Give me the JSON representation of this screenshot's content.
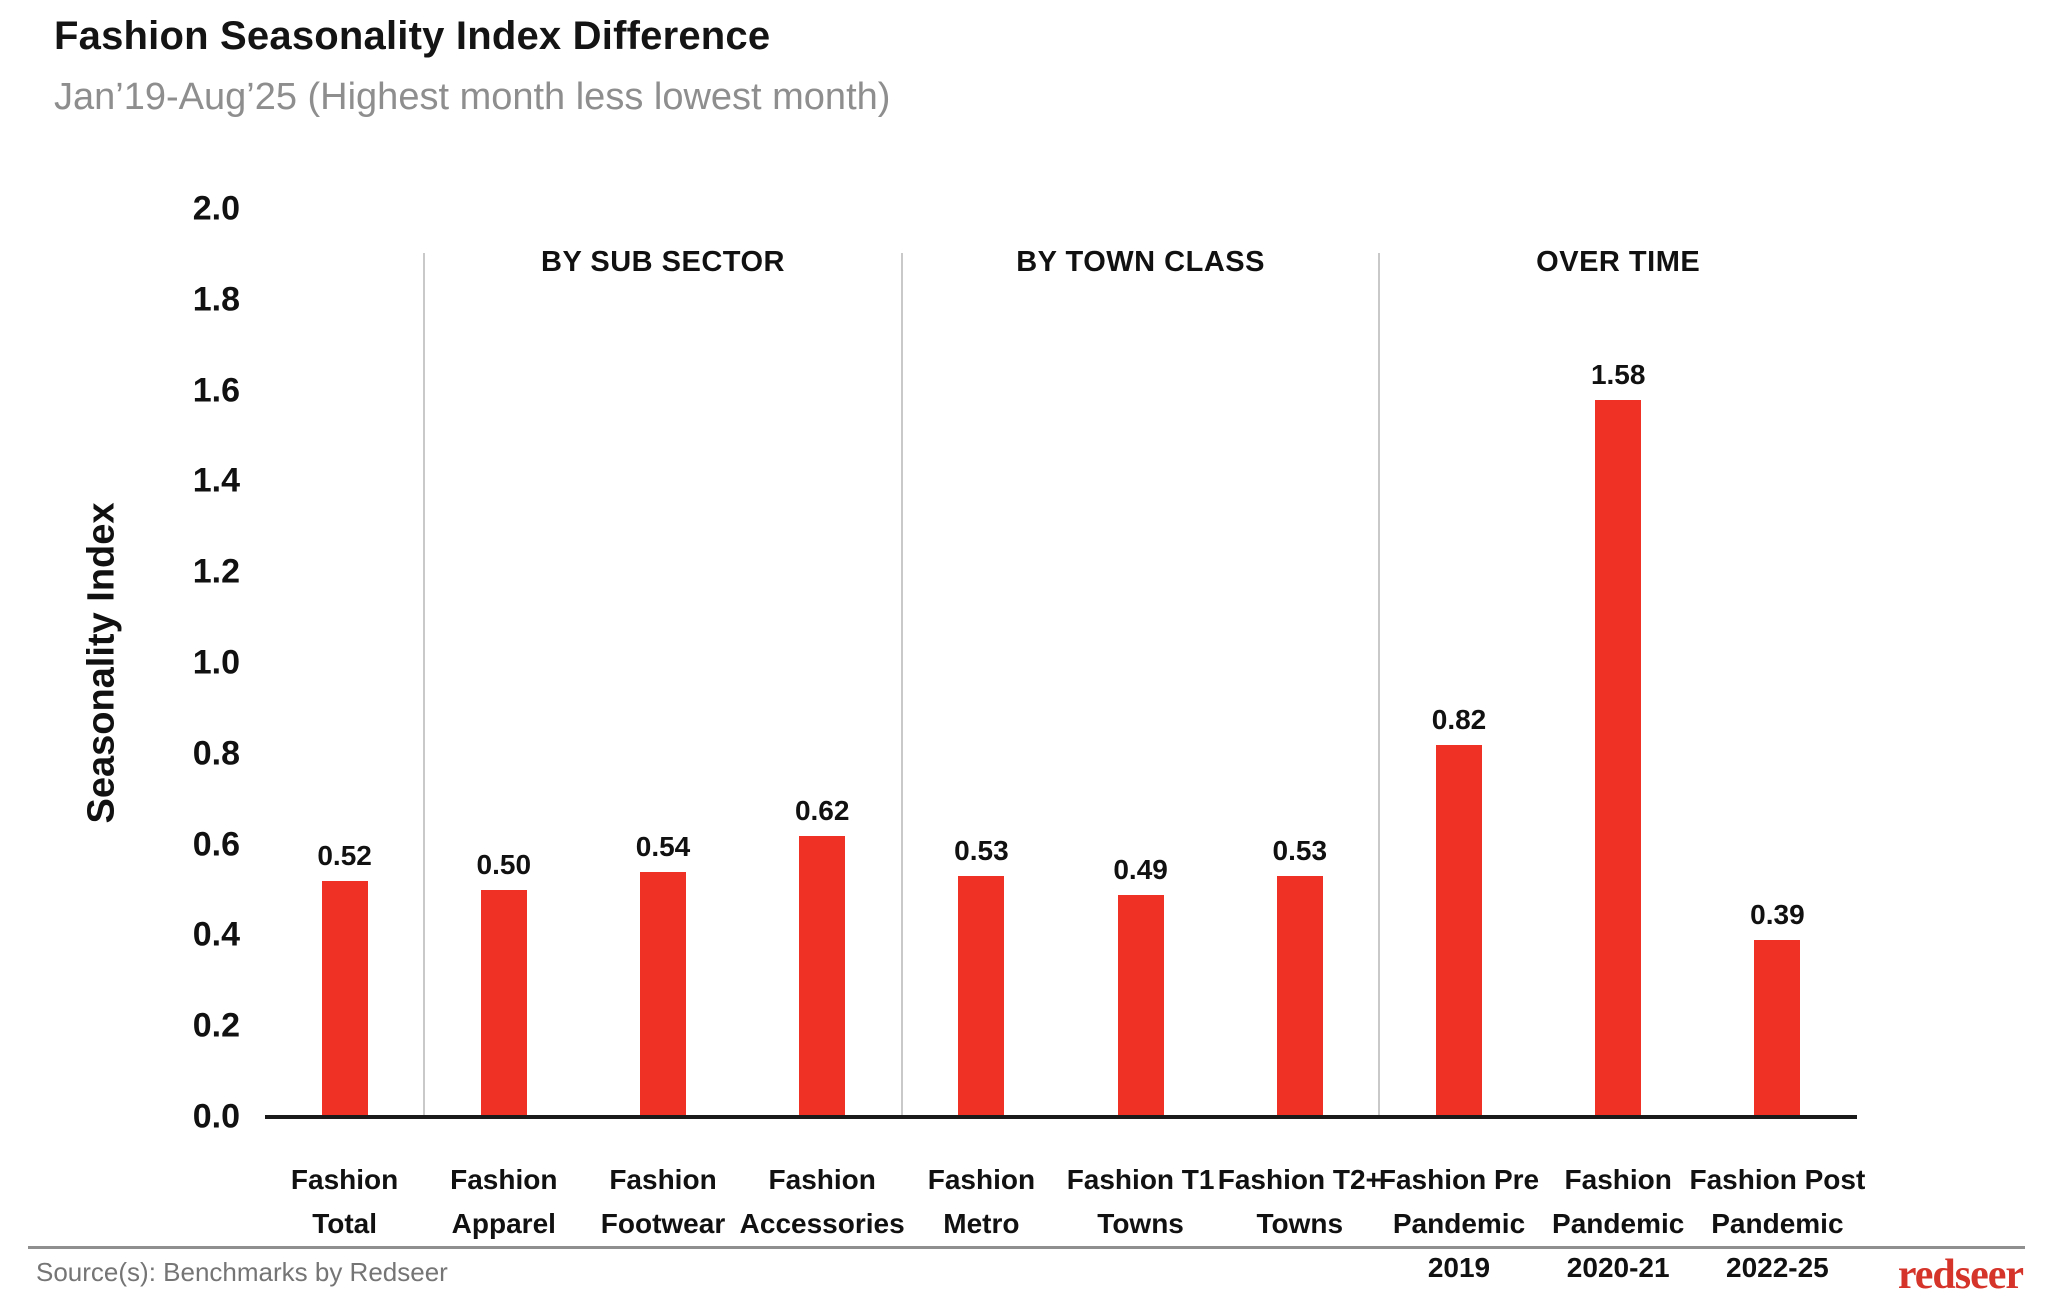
{
  "header": {
    "title": "Fashion Seasonality Index Difference",
    "subtitle": "Jan’19-Aug’25 (Highest month less lowest month)"
  },
  "chart_data": {
    "type": "bar",
    "title": "Fashion Seasonality Index Difference",
    "subtitle": "Jan’19-Aug’25 (Highest month less lowest month)",
    "ylabel": "Seasonality Index",
    "xlabel": "",
    "ylim": [
      0.0,
      2.0
    ],
    "ytick_step": 0.2,
    "grid": "off",
    "bar_color": "#ee3124",
    "categories": [
      "Fashion\nTotal",
      "Fashion\nApparel",
      "Fashion\nFootwear",
      "Fashion\nAccessories",
      "Fashion\nMetro",
      "Fashion T1\nTowns",
      "Fashion T2+\nTowns",
      "Fashion Pre\nPandemic\n2019",
      "Fashion\nPandemic\n2020-21",
      "Fashion Post\nPandemic\n2022-25"
    ],
    "values": [
      0.52,
      0.5,
      0.54,
      0.62,
      0.53,
      0.49,
      0.53,
      0.82,
      1.58,
      0.39
    ],
    "value_labels": [
      "0.52",
      "0.50",
      "0.54",
      "0.62",
      "0.53",
      "0.49",
      "0.53",
      "0.82",
      "1.58",
      "0.39"
    ],
    "sections": [
      {
        "label": "BY SUB SECTOR",
        "from_slot": 1,
        "to_slot": 3
      },
      {
        "label": "BY TOWN CLASS",
        "from_slot": 4,
        "to_slot": 6
      },
      {
        "label": "OVER TIME",
        "from_slot": 7,
        "to_slot": 9
      }
    ],
    "divider_slots": [
      1,
      4,
      7
    ],
    "divider_color": "#c9c9c9",
    "axis_color": "#1a1a1a",
    "legend": "none"
  },
  "footer": {
    "source": "Source(s): Benchmarks by Redseer",
    "logo": "redseer",
    "logo_color": "#d5342a"
  }
}
